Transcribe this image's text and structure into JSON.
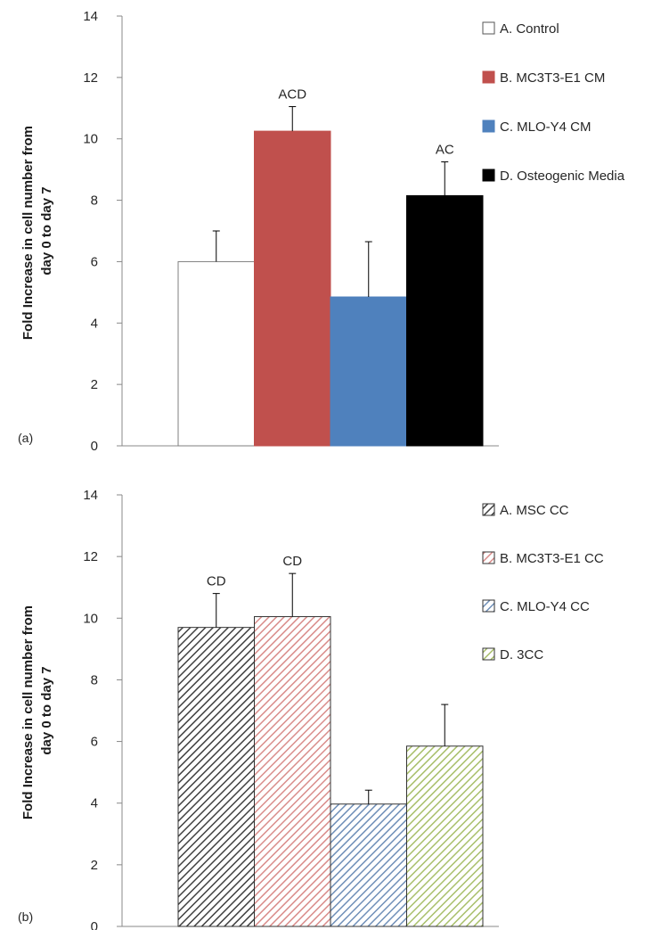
{
  "chart_data": [
    {
      "type": "bar",
      "panel_label": "(a)",
      "ylabel_line1": "Fold Increase in cell number from",
      "ylabel_line2": "day 0 to day 7",
      "ylim": [
        0,
        14
      ],
      "yticks": [
        "0",
        "2",
        "4",
        "6",
        "8",
        "10",
        "12",
        "14"
      ],
      "grid": false,
      "legend_position": "top-right",
      "series": [
        {
          "name": "A. Control",
          "value": 6.0,
          "error": 1.0,
          "annotation": "",
          "color": "#ffffff",
          "pattern": "solid"
        },
        {
          "name": "B. MC3T3-E1 CM",
          "value": 10.25,
          "error": 0.8,
          "annotation": "ACD",
          "color": "#c0504d",
          "pattern": "solid"
        },
        {
          "name": "C. MLO-Y4 CM",
          "value": 4.85,
          "error": 1.8,
          "annotation": "",
          "color": "#4f81bd",
          "pattern": "solid"
        },
        {
          "name": "D. Osteogenic Media",
          "value": 8.15,
          "error": 1.1,
          "annotation": "AC",
          "color": "#000000",
          "pattern": "solid"
        }
      ]
    },
    {
      "type": "bar",
      "panel_label": "(b)",
      "ylabel_line1": "Fold Increase in cell number from",
      "ylabel_line2": "day 0 to day 7",
      "ylim": [
        0,
        14
      ],
      "yticks": [
        "0",
        "2",
        "4",
        "6",
        "8",
        "10",
        "12",
        "14"
      ],
      "grid": false,
      "legend_position": "top-right",
      "series": [
        {
          "name": "A. MSC CC",
          "value": 9.7,
          "error": 1.1,
          "annotation": "CD",
          "color": "#404040",
          "pattern": "hatched"
        },
        {
          "name": "B. MC3T3-E1 CC",
          "value": 10.05,
          "error": 1.4,
          "annotation": "CD",
          "color": "#d98c8a",
          "pattern": "hatched"
        },
        {
          "name": "C. MLO-Y4 CC",
          "value": 3.97,
          "error": 0.45,
          "annotation": "",
          "color": "#6f8fb8",
          "pattern": "hatched"
        },
        {
          "name": "D. 3CC",
          "value": 5.85,
          "error": 1.35,
          "annotation": "",
          "color": "#a8bf6a",
          "pattern": "hatched"
        }
      ]
    }
  ]
}
